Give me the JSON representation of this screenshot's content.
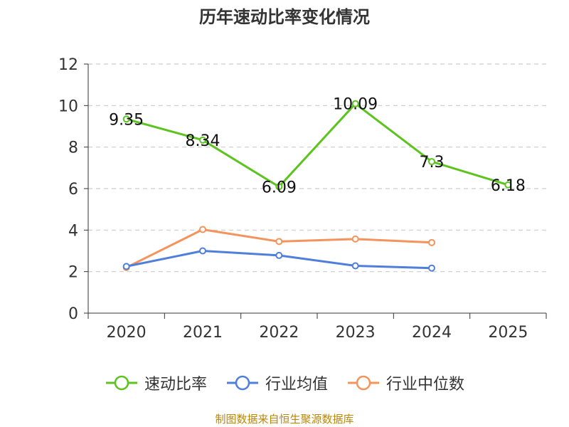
{
  "title": "历年速动比率变化情况",
  "source_note": "制图数据来自恒生聚源数据库",
  "legend": [
    {
      "name": "速动比率",
      "color": "#5cc31f"
    },
    {
      "name": "行业均值",
      "color": "#4f7fdb"
    },
    {
      "name": "行业中位数",
      "color": "#f5935c"
    }
  ],
  "chart_data": {
    "type": "line",
    "title": "历年速动比率变化情况",
    "xlabel": "",
    "ylabel": "",
    "categories": [
      "2020",
      "2021",
      "2022",
      "2023",
      "2024",
      "2025"
    ],
    "ylim": [
      0,
      12
    ],
    "yticks": [
      0,
      2,
      4,
      6,
      8,
      10,
      12
    ],
    "grid": true,
    "legend_position": "bottom",
    "series": [
      {
        "name": "速动比率",
        "color": "#5cc31f",
        "values": [
          9.35,
          8.34,
          6.09,
          10.09,
          7.3,
          6.18
        ],
        "labels": [
          "9.35",
          "8.34",
          "6.09",
          "10.09",
          "7.3",
          "6.18"
        ]
      },
      {
        "name": "行业均值",
        "color": "#4f7fdb",
        "values": [
          2.25,
          3.0,
          2.78,
          2.28,
          2.17,
          null
        ]
      },
      {
        "name": "行业中位数",
        "color": "#f5935c",
        "values": [
          2.2,
          4.03,
          3.45,
          3.57,
          3.4,
          null
        ]
      }
    ]
  }
}
